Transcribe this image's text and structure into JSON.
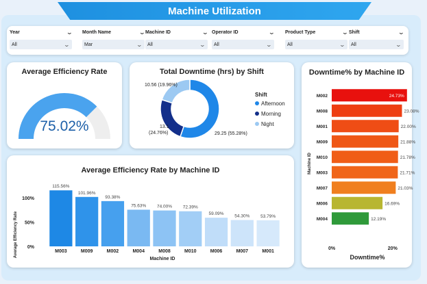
{
  "header": {
    "title": "Machine Utilization"
  },
  "filters": [
    {
      "label": "Year",
      "value": "All"
    },
    {
      "label": "Month Name",
      "value": "Mar"
    },
    {
      "label": "Machine ID",
      "value": "All"
    },
    {
      "label": "Operator ID",
      "value": "All"
    },
    {
      "label": "Product Type",
      "value": "All"
    },
    {
      "label": "Shift",
      "value": "All"
    }
  ],
  "gauge": {
    "title": "Average Efficiency Rate",
    "value_text": "75.02%",
    "value": 75.02,
    "color": "#4aa3ee",
    "track_color": "#eeeeee"
  },
  "donut": {
    "title": "Total Downtime (hrs) by Shift",
    "legend_title": "Shift",
    "chart_data": {
      "type": "pie",
      "slices": [
        {
          "name": "Afternoon",
          "value": 29.25,
          "pct": "55.28%",
          "label": "29.25 (55.28%)",
          "color": "#1f87e8"
        },
        {
          "name": "Morning",
          "value": 13.1,
          "pct": "24.76%",
          "label_a": "13.1",
          "label_b": "(24.76%)",
          "color": "#132f8a"
        },
        {
          "name": "Night",
          "value": 10.56,
          "pct": "19.96%",
          "label": "10.56 (19.96%)",
          "color": "#9cc9f2"
        }
      ]
    }
  },
  "bar_chart": {
    "title": "Average Efficiency Rate by Machine ID",
    "chart_data": {
      "type": "bar",
      "xlabel": "Machine ID",
      "ylabel": "Average Efficiency Rate",
      "ylim": [
        0,
        120
      ],
      "yticks": [
        {
          "v": 0,
          "t": "0%"
        },
        {
          "v": 50,
          "t": "50%"
        },
        {
          "v": 100,
          "t": "100%"
        }
      ],
      "categories": [
        "M003",
        "M009",
        "M002",
        "M004",
        "M008",
        "M010",
        "M006",
        "M007",
        "M001"
      ],
      "values": [
        115.56,
        101.96,
        93.38,
        75.63,
        74.0,
        72.39,
        59.09,
        54.3,
        53.79
      ],
      "labels": [
        "115.56%",
        "101.96%",
        "93.38%",
        "75.63%",
        "74.00%",
        "72.39%",
        "59.09%",
        "54.30%",
        "53.79%"
      ],
      "colors": [
        "#1e88e5",
        "#2f93ea",
        "#46a0ee",
        "#7ab9f2",
        "#8dc3f4",
        "#a2cef6",
        "#c0ddf9",
        "#cde4fa",
        "#d6e9fb"
      ]
    }
  },
  "hbar_chart": {
    "title": "Downtime% by Machine ID",
    "chart_data": {
      "type": "bar",
      "orientation": "horizontal",
      "xlabel": "Downtime%",
      "ylabel": "Machine ID",
      "xlim": [
        0,
        25
      ],
      "xticks": [
        {
          "v": 0,
          "t": "0%"
        },
        {
          "v": 20,
          "t": "20%"
        }
      ],
      "categories": [
        "M002",
        "M008",
        "M001",
        "M009",
        "M010",
        "M003",
        "M007",
        "M006",
        "M004"
      ],
      "values": [
        24.73,
        23.08,
        22.0,
        21.88,
        21.78,
        21.71,
        21.03,
        16.69,
        12.19
      ],
      "labels": [
        "24.73%",
        "23.08%",
        "22.00%",
        "21.88%",
        "21.78%",
        "21.71%",
        "21.03%",
        "16.69%",
        "12.19%"
      ],
      "colors": [
        "#e8110e",
        "#ee3e12",
        "#ef4d15",
        "#ef5716",
        "#f05d17",
        "#f0651a",
        "#f07f1f",
        "#b8b631",
        "#2f9a3a"
      ]
    }
  }
}
